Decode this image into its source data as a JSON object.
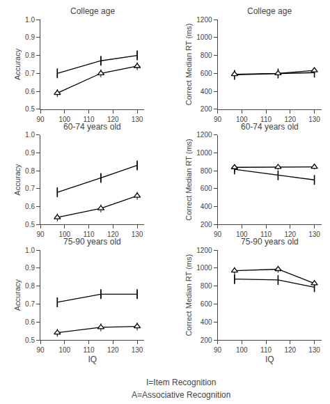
{
  "chart_data": [
    {
      "type": "line",
      "title": "College age",
      "x": [
        97,
        115,
        130
      ],
      "ylabel": "Accuracy",
      "xlim": [
        90,
        133
      ],
      "xticks": [
        90,
        100,
        110,
        120,
        130
      ],
      "ylim": [
        0.5,
        1.0
      ],
      "yticks": [
        0.5,
        0.6,
        0.7,
        0.8,
        0.9,
        {
          "value": 1.0,
          "label": "1.0"
        }
      ],
      "grid": false,
      "series": [
        {
          "color": "#000000",
          "marker": "vline",
          "values": [
            0.7,
            0.77,
            0.8
          ],
          "errors": [
            0.022,
            0.022,
            0.022
          ]
        },
        {
          "color": "#000000",
          "marker": "triangle",
          "values": [
            0.59,
            0.7,
            0.74
          ],
          "errors": [
            0.022,
            0.022,
            0.022
          ]
        }
      ]
    },
    {
      "type": "line",
      "title": "College age",
      "x": [
        97,
        115,
        130
      ],
      "ylabel": "Correct Median RT (ms)",
      "xlim": [
        90,
        133
      ],
      "xticks": [
        90,
        100,
        110,
        120,
        130
      ],
      "ylim": [
        200,
        1200
      ],
      "yticks": [
        200,
        400,
        600,
        800,
        1000,
        1200
      ],
      "grid": false,
      "series": [
        {
          "color": "#000000",
          "marker": "vline",
          "values": [
            583,
            598,
            608
          ],
          "errors": [
            18,
            18,
            18
          ]
        },
        {
          "color": "#000000",
          "marker": "triangle",
          "values": [
            590,
            600,
            632
          ],
          "errors": [
            18,
            18,
            18
          ]
        }
      ]
    },
    {
      "type": "line",
      "title": "60-74 years old",
      "x": [
        97,
        115,
        130
      ],
      "ylabel": "Accuracy",
      "xlim": [
        90,
        133
      ],
      "xticks": [
        90,
        100,
        110,
        120,
        130
      ],
      "ylim": [
        0.5,
        1.0
      ],
      "yticks": [
        0.5,
        0.6,
        0.7,
        0.8,
        0.9,
        {
          "value": 1.0,
          "label": "1.0"
        }
      ],
      "grid": false,
      "series": [
        {
          "color": "#000000",
          "marker": "vline",
          "values": [
            0.68,
            0.76,
            0.83
          ],
          "errors": [
            0.022,
            0.022,
            0.022
          ]
        },
        {
          "color": "#000000",
          "marker": "triangle",
          "values": [
            0.54,
            0.59,
            0.66
          ],
          "errors": [
            0.022,
            0.022,
            0.022
          ]
        }
      ]
    },
    {
      "type": "line",
      "title": "60-74 years old",
      "x": [
        97,
        115,
        130
      ],
      "ylabel": "Correct Median RT (ms)",
      "xlim": [
        90,
        133
      ],
      "xticks": [
        90,
        100,
        110,
        120,
        130
      ],
      "ylim": [
        200,
        1200
      ],
      "yticks": [
        200,
        400,
        600,
        800,
        1000,
        1200
      ],
      "grid": false,
      "series": [
        {
          "color": "#000000",
          "marker": "vline",
          "values": [
            815,
            748,
            698
          ],
          "errors": [
            28,
            28,
            28
          ]
        },
        {
          "color": "#000000",
          "marker": "triangle",
          "values": [
            838,
            840,
            843
          ],
          "errors": [
            28,
            28,
            28
          ]
        }
      ]
    },
    {
      "type": "line",
      "title": "75-90 years old",
      "x": [
        97,
        115,
        130
      ],
      "xlabel": "IQ",
      "ylabel": "Accuracy",
      "xlim": [
        90,
        133
      ],
      "xticks": [
        90,
        100,
        110,
        120,
        130
      ],
      "ylim": [
        0.5,
        1.0
      ],
      "yticks": [
        0.5,
        0.6,
        0.7,
        0.8,
        0.9,
        {
          "value": 1.0,
          "label": "1.0"
        }
      ],
      "grid": false,
      "series": [
        {
          "color": "#000000",
          "marker": "vline",
          "values": [
            0.71,
            0.755,
            0.755
          ],
          "errors": [
            0.022,
            0.022,
            0.022
          ]
        },
        {
          "color": "#000000",
          "marker": "triangle",
          "values": [
            0.54,
            0.57,
            0.575
          ],
          "errors": [
            0.022,
            0.022,
            0.022
          ]
        }
      ]
    },
    {
      "type": "line",
      "title": "75-90 years old",
      "x": [
        97,
        115,
        130
      ],
      "xlabel": "IQ",
      "ylabel": "Correct Median RT (ms)",
      "xlim": [
        90,
        133
      ],
      "xticks": [
        90,
        100,
        110,
        120,
        130
      ],
      "ylim": [
        200,
        1200
      ],
      "yticks": [
        200,
        400,
        600,
        800,
        1000,
        1200
      ],
      "grid": false,
      "series": [
        {
          "color": "#000000",
          "marker": "vline",
          "values": [
            878,
            868,
            788
          ],
          "errors": [
            38,
            38,
            38
          ]
        },
        {
          "color": "#000000",
          "marker": "triangle",
          "values": [
            972,
            988,
            830
          ],
          "errors": [
            38,
            38,
            38
          ]
        }
      ]
    }
  ],
  "annotations": [
    "I=Item Recognition",
    "A=Associative Recognition"
  ]
}
